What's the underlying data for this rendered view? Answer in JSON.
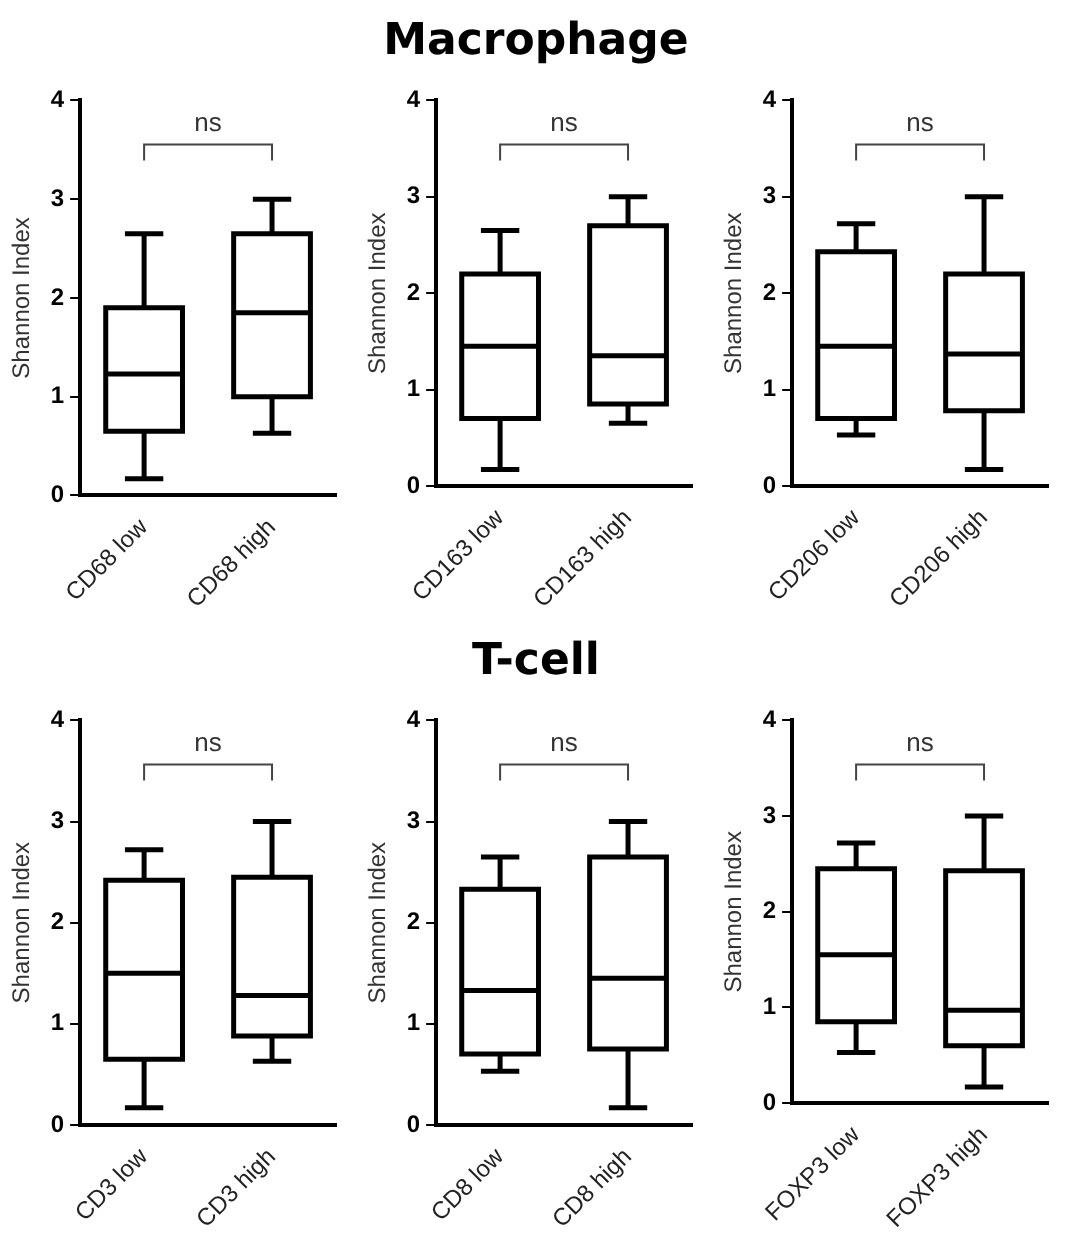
{
  "chart_data": [
    {
      "type": "other",
      "title": "Macrophage"
    },
    {
      "type": "box",
      "ylabel": "Shannon Index",
      "categories": [
        "CD68 low",
        "CD68 high"
      ],
      "ylim": [
        0,
        4
      ],
      "yticks": [
        0,
        1,
        2,
        3,
        4
      ],
      "annotations": [
        "ns"
      ],
      "boxes": [
        {
          "low": 0.17,
          "q1": 0.65,
          "median": 1.23,
          "q3": 1.9,
          "high": 2.65
        },
        {
          "low": 0.63,
          "q1": 1.0,
          "median": 1.85,
          "q3": 2.65,
          "high": 3.0
        }
      ]
    },
    {
      "type": "box",
      "ylabel": "Shannon Index",
      "categories": [
        "CD163 low",
        "CD163 high"
      ],
      "ylim": [
        0,
        4
      ],
      "yticks": [
        0,
        1,
        2,
        3,
        4
      ],
      "annotations": [
        "ns"
      ],
      "boxes": [
        {
          "low": 0.17,
          "q1": 0.7,
          "median": 1.45,
          "q3": 2.2,
          "high": 2.65
        },
        {
          "low": 0.65,
          "q1": 0.85,
          "median": 1.35,
          "q3": 2.7,
          "high": 3.0
        }
      ]
    },
    {
      "type": "box",
      "ylabel": "Shannon Index",
      "categories": [
        "CD206 low",
        "CD206 high"
      ],
      "ylim": [
        0,
        4
      ],
      "yticks": [
        0,
        1,
        2,
        3,
        4
      ],
      "annotations": [
        "ns"
      ],
      "boxes": [
        {
          "low": 0.53,
          "q1": 0.7,
          "median": 1.45,
          "q3": 2.43,
          "high": 2.72
        },
        {
          "low": 0.17,
          "q1": 0.78,
          "median": 1.37,
          "q3": 2.2,
          "high": 3.0
        }
      ]
    },
    {
      "type": "other",
      "title": "T-cell"
    },
    {
      "type": "box",
      "ylabel": "Shannon Index",
      "categories": [
        "CD3 low",
        "CD3 high"
      ],
      "ylim": [
        0,
        4
      ],
      "yticks": [
        0,
        1,
        2,
        3,
        4
      ],
      "annotations": [
        "ns"
      ],
      "boxes": [
        {
          "low": 0.17,
          "q1": 0.65,
          "median": 1.5,
          "q3": 2.42,
          "high": 2.72
        },
        {
          "low": 0.63,
          "q1": 0.88,
          "median": 1.28,
          "q3": 2.45,
          "high": 3.0
        }
      ]
    },
    {
      "type": "box",
      "ylabel": "Shannon Index",
      "categories": [
        "CD8 low",
        "CD8 high"
      ],
      "ylim": [
        0,
        4
      ],
      "yticks": [
        0,
        1,
        2,
        3,
        4
      ],
      "annotations": [
        "ns"
      ],
      "boxes": [
        {
          "low": 0.53,
          "q1": 0.7,
          "median": 1.33,
          "q3": 2.33,
          "high": 2.65
        },
        {
          "low": 0.17,
          "q1": 0.75,
          "median": 1.45,
          "q3": 2.65,
          "high": 3.0
        }
      ]
    },
    {
      "type": "box",
      "ylabel": "Shannon Index",
      "categories": [
        "FOXP3 low",
        "FOXP3 high"
      ],
      "ylim": [
        0,
        4
      ],
      "yticks": [
        0,
        1,
        2,
        3,
        4
      ],
      "annotations": [
        "ns"
      ],
      "boxes": [
        {
          "low": 0.53,
          "q1": 0.85,
          "median": 1.55,
          "q3": 2.45,
          "high": 2.72
        },
        {
          "low": 0.17,
          "q1": 0.6,
          "median": 0.97,
          "q3": 2.43,
          "high": 3.0
        }
      ]
    }
  ]
}
